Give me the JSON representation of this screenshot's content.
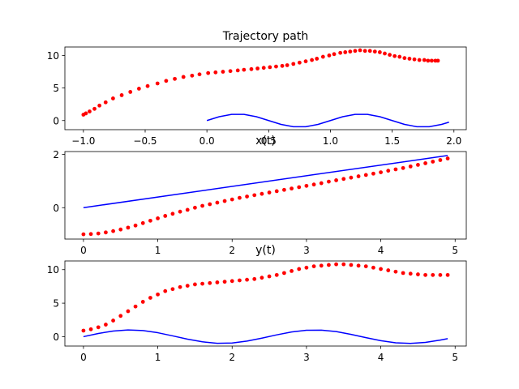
{
  "chart_data": [
    {
      "type": "line",
      "title": "Trajectory path",
      "xlim": [
        -1.15,
        2.1
      ],
      "ylim": [
        -1.4,
        11.3
      ],
      "xticks": [
        -1.0,
        -0.5,
        0.0,
        0.5,
        1.0,
        1.5,
        2.0
      ],
      "xtick_labels": [
        "−1.0",
        "−0.5",
        "0.0",
        "0.5",
        "1.0",
        "1.5",
        "2.0"
      ],
      "yticks": [
        0,
        5,
        10
      ],
      "ytick_labels": [
        "0",
        "5",
        "10"
      ],
      "grid": false,
      "series": [
        {
          "style": "line",
          "color": "#0000ff",
          "x": [
            0.0,
            0.1,
            0.2,
            0.3,
            0.4,
            0.5,
            0.6,
            0.7,
            0.8,
            0.9,
            1.0,
            1.1,
            1.2,
            1.3,
            1.4,
            1.5,
            1.6,
            1.7,
            1.8,
            1.9,
            1.96
          ],
          "y": [
            0.0,
            0.59,
            0.95,
            0.95,
            0.59,
            0.0,
            -0.59,
            -0.95,
            -0.95,
            -0.59,
            0.0,
            0.59,
            0.95,
            0.95,
            0.59,
            0.0,
            -0.59,
            -0.95,
            -0.95,
            -0.59,
            -0.25
          ]
        },
        {
          "style": "markers",
          "color": "#ff0000",
          "x": [
            -1.0,
            -0.98,
            -0.95,
            -0.91,
            -0.87,
            -0.82,
            -0.76,
            -0.69,
            -0.62,
            -0.55,
            -0.48,
            -0.4,
            -0.33,
            -0.26,
            -0.19,
            -0.12,
            -0.06,
            0.01,
            0.07,
            0.13,
            0.19,
            0.25,
            0.3,
            0.36,
            0.41,
            0.46,
            0.51,
            0.56,
            0.61,
            0.65,
            0.7,
            0.75,
            0.8,
            0.85,
            0.89,
            0.94,
            0.99,
            1.03,
            1.08,
            1.12,
            1.16,
            1.2,
            1.24,
            1.28,
            1.32,
            1.36,
            1.4,
            1.44,
            1.48,
            1.52,
            1.56,
            1.6,
            1.64,
            1.68,
            1.72,
            1.76,
            1.79,
            1.82,
            1.85,
            1.87
          ],
          "y": [
            0.9,
            1.1,
            1.4,
            1.8,
            2.3,
            2.8,
            3.4,
            3.9,
            4.4,
            4.9,
            5.3,
            5.7,
            6.1,
            6.4,
            6.7,
            6.9,
            7.1,
            7.3,
            7.4,
            7.5,
            7.6,
            7.7,
            7.8,
            7.9,
            8.0,
            8.1,
            8.2,
            8.3,
            8.4,
            8.5,
            8.7,
            8.9,
            9.1,
            9.3,
            9.5,
            9.8,
            10.0,
            10.2,
            10.4,
            10.5,
            10.6,
            10.7,
            10.8,
            10.7,
            10.7,
            10.6,
            10.5,
            10.3,
            10.1,
            9.9,
            9.8,
            9.6,
            9.5,
            9.4,
            9.3,
            9.3,
            9.2,
            9.2,
            9.2,
            9.2
          ]
        }
      ]
    },
    {
      "type": "line",
      "title": "x(t)",
      "xlim": [
        -0.25,
        5.15
      ],
      "ylim": [
        -1.18,
        2.11
      ],
      "xticks": [
        0,
        1,
        2,
        3,
        4,
        5
      ],
      "xtick_labels": [
        "0",
        "1",
        "2",
        "3",
        "4",
        "5"
      ],
      "yticks": [
        0,
        2
      ],
      "ytick_labels": [
        "0",
        "2"
      ],
      "grid": false,
      "series": [
        {
          "style": "line",
          "color": "#0000ff",
          "x": [
            0.0,
            4.9
          ],
          "y": [
            0.0,
            1.96
          ]
        },
        {
          "style": "markers",
          "color": "#ff0000",
          "x": [
            0.0,
            0.1,
            0.2,
            0.3,
            0.4,
            0.5,
            0.6,
            0.7,
            0.8,
            0.9,
            1.0,
            1.1,
            1.2,
            1.3,
            1.4,
            1.5,
            1.6,
            1.7,
            1.8,
            1.9,
            2.0,
            2.1,
            2.2,
            2.3,
            2.4,
            2.5,
            2.6,
            2.7,
            2.8,
            2.9,
            3.0,
            3.1,
            3.2,
            3.3,
            3.4,
            3.5,
            3.6,
            3.7,
            3.8,
            3.9,
            4.0,
            4.1,
            4.2,
            4.3,
            4.4,
            4.5,
            4.6,
            4.7,
            4.8,
            4.9
          ],
          "y": [
            -1.0,
            -0.99,
            -0.97,
            -0.93,
            -0.88,
            -0.82,
            -0.75,
            -0.67,
            -0.58,
            -0.49,
            -0.4,
            -0.31,
            -0.23,
            -0.15,
            -0.08,
            0.0,
            0.07,
            0.13,
            0.19,
            0.25,
            0.31,
            0.37,
            0.42,
            0.47,
            0.52,
            0.57,
            0.62,
            0.67,
            0.72,
            0.77,
            0.82,
            0.87,
            0.92,
            0.98,
            1.03,
            1.08,
            1.13,
            1.18,
            1.23,
            1.28,
            1.33,
            1.39,
            1.44,
            1.49,
            1.55,
            1.61,
            1.67,
            1.73,
            1.79,
            1.85
          ]
        }
      ]
    },
    {
      "type": "line",
      "title": "y(t)",
      "xlim": [
        -0.25,
        5.15
      ],
      "ylim": [
        -1.4,
        11.3
      ],
      "xticks": [
        0,
        1,
        2,
        3,
        4,
        5
      ],
      "xtick_labels": [
        "0",
        "1",
        "2",
        "3",
        "4",
        "5"
      ],
      "yticks": [
        0,
        5,
        10
      ],
      "ytick_labels": [
        "0",
        "5",
        "10"
      ],
      "grid": false,
      "series": [
        {
          "style": "line",
          "color": "#0000ff",
          "x": [
            0.0,
            0.2,
            0.4,
            0.6,
            0.8,
            1.0,
            1.2,
            1.4,
            1.6,
            1.8,
            2.0,
            2.2,
            2.4,
            2.6,
            2.8,
            3.0,
            3.2,
            3.4,
            3.6,
            3.8,
            4.0,
            4.2,
            4.4,
            4.6,
            4.8,
            4.9
          ],
          "y": [
            0.0,
            0.48,
            0.84,
            1.0,
            0.91,
            0.59,
            0.12,
            -0.37,
            -0.77,
            -0.99,
            -0.95,
            -0.66,
            -0.22,
            0.27,
            0.7,
            0.96,
            0.98,
            0.76,
            0.34,
            -0.14,
            -0.6,
            -0.91,
            -1.0,
            -0.86,
            -0.51,
            -0.3
          ]
        },
        {
          "style": "markers",
          "color": "#ff0000",
          "x": [
            0.0,
            0.1,
            0.2,
            0.3,
            0.4,
            0.5,
            0.6,
            0.7,
            0.8,
            0.9,
            1.0,
            1.1,
            1.2,
            1.3,
            1.4,
            1.5,
            1.6,
            1.7,
            1.8,
            1.9,
            2.0,
            2.1,
            2.2,
            2.3,
            2.4,
            2.5,
            2.6,
            2.7,
            2.8,
            2.9,
            3.0,
            3.1,
            3.2,
            3.3,
            3.4,
            3.5,
            3.6,
            3.7,
            3.8,
            3.9,
            4.0,
            4.1,
            4.2,
            4.3,
            4.4,
            4.5,
            4.6,
            4.7,
            4.8,
            4.9
          ],
          "y": [
            0.9,
            1.1,
            1.4,
            1.8,
            2.4,
            3.1,
            3.8,
            4.5,
            5.2,
            5.8,
            6.3,
            6.8,
            7.1,
            7.4,
            7.6,
            7.8,
            7.9,
            8.0,
            8.1,
            8.2,
            8.3,
            8.4,
            8.5,
            8.6,
            8.8,
            9.0,
            9.2,
            9.5,
            9.8,
            10.1,
            10.3,
            10.5,
            10.6,
            10.7,
            10.8,
            10.8,
            10.7,
            10.6,
            10.5,
            10.3,
            10.1,
            9.9,
            9.7,
            9.5,
            9.4,
            9.3,
            9.2,
            9.2,
            9.2,
            9.2
          ]
        }
      ]
    }
  ]
}
